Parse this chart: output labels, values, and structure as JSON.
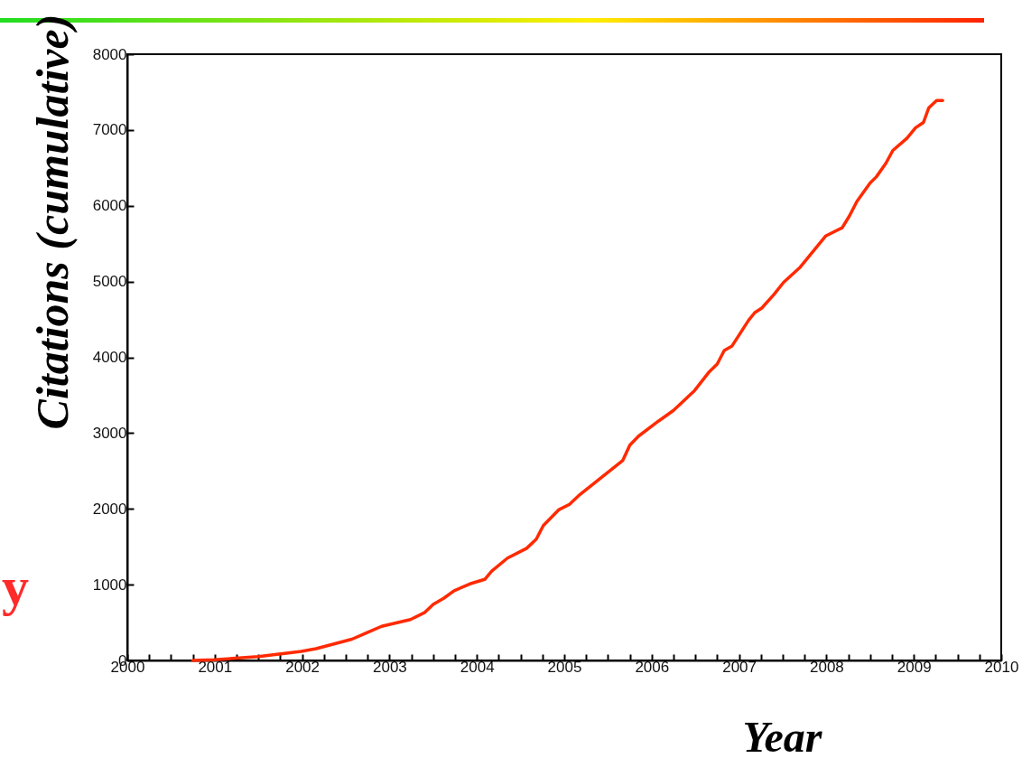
{
  "chart_data": {
    "type": "line",
    "xlabel": "Year",
    "ylabel": "Citations (cumulative)",
    "x": [
      2000.75,
      2001.0,
      2001.5,
      2001.99,
      2002.16,
      2002.57,
      2002.74,
      2002.91,
      2003.24,
      2003.4,
      2003.5,
      2003.62,
      2003.74,
      2003.92,
      2004.09,
      2004.17,
      2004.35,
      2004.57,
      2004.68,
      2004.76,
      2004.94,
      2005.06,
      2005.18,
      2005.67,
      2005.75,
      2005.85,
      2006.08,
      2006.25,
      2006.49,
      2006.66,
      2006.75,
      2006.83,
      2006.92,
      2007.11,
      2007.18,
      2007.26,
      2007.4,
      2007.51,
      2007.7,
      2007.99,
      2008.18,
      2008.26,
      2008.35,
      2008.5,
      2008.57,
      2008.68,
      2008.76,
      2008.92,
      2009.02,
      2009.11,
      2009.17,
      2009.26,
      2009.33
    ],
    "series": [
      {
        "color": "#ff2a00",
        "values": [
          0,
          10,
          50,
          120,
          155,
          280,
          365,
          450,
          540,
          630,
          740,
          820,
          920,
          1010,
          1070,
          1180,
          1350,
          1480,
          1600,
          1780,
          1990,
          2060,
          2190,
          2640,
          2840,
          2960,
          3160,
          3300,
          3560,
          3810,
          3910,
          4090,
          4150,
          4490,
          4590,
          4650,
          4830,
          4990,
          5190,
          5600,
          5710,
          5860,
          6060,
          6300,
          6380,
          6560,
          6730,
          6890,
          7030,
          7100,
          7290,
          7390,
          7390
        ]
      }
    ],
    "xlim": [
      2000,
      2010
    ],
    "ylim": [
      0,
      8000
    ],
    "xticks": [
      2000,
      {
        "value": 2000.25,
        "label": null
      },
      {
        "value": 2000.5,
        "label": null
      },
      {
        "value": 2000.75,
        "label": null
      },
      2001,
      {
        "value": 2001.25,
        "label": null
      },
      {
        "value": 2001.5,
        "label": null
      },
      {
        "value": 2001.75,
        "label": null
      },
      2002,
      {
        "value": 2002.25,
        "label": null
      },
      {
        "value": 2002.5,
        "label": null
      },
      {
        "value": 2002.75,
        "label": null
      },
      2003,
      {
        "value": 2003.25,
        "label": null
      },
      {
        "value": 2003.5,
        "label": null
      },
      {
        "value": 2003.75,
        "label": null
      },
      2004,
      {
        "value": 2004.25,
        "label": null
      },
      {
        "value": 2004.5,
        "label": null
      },
      {
        "value": 2004.75,
        "label": null
      },
      2005,
      {
        "value": 2005.25,
        "label": null
      },
      {
        "value": 2005.5,
        "label": null
      },
      {
        "value": 2005.75,
        "label": null
      },
      2006,
      {
        "value": 2006.25,
        "label": null
      },
      {
        "value": 2006.5,
        "label": null
      },
      {
        "value": 2006.75,
        "label": null
      },
      2007,
      {
        "value": 2007.25,
        "label": null
      },
      {
        "value": 2007.5,
        "label": null
      },
      {
        "value": 2007.75,
        "label": null
      },
      2008,
      {
        "value": 2008.25,
        "label": null
      },
      {
        "value": 2008.5,
        "label": null
      },
      {
        "value": 2008.75,
        "label": null
      },
      2009,
      {
        "value": 2009.25,
        "label": null
      },
      {
        "value": 2009.5,
        "label": null
      },
      {
        "value": 2009.75,
        "label": null
      },
      2010
    ],
    "yticks": [
      0,
      1000,
      2000,
      3000,
      4000,
      5000,
      6000,
      7000,
      8000
    ],
    "annotations": [
      "y"
    ],
    "grid": false,
    "marker": "none",
    "line_style": "solid"
  }
}
